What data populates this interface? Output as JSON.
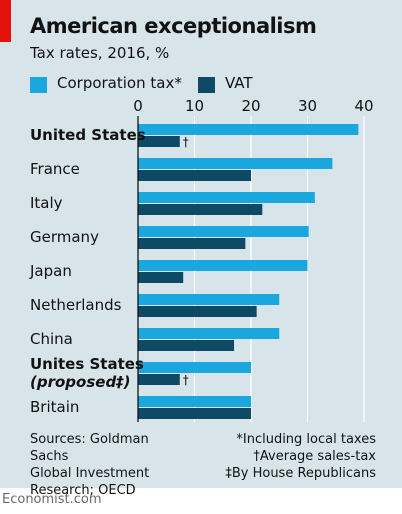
{
  "header": {
    "title": "American exceptionalism",
    "subtitle": "Tax rates, 2016, %"
  },
  "legend": {
    "corporation_label": "Corporation tax*",
    "vat_label": "VAT"
  },
  "colors": {
    "corporation": "#19a7de",
    "vat": "#0e4a63",
    "background": "#d7e4ea",
    "accent": "#e3120b"
  },
  "chart_data": {
    "type": "bar",
    "orientation": "horizontal",
    "title": "American exceptionalism",
    "subtitle": "Tax rates, 2016, %",
    "categories": [
      "United States",
      "France",
      "Italy",
      "Germany",
      "Japan",
      "Netherlands",
      "China",
      "Unites States (proposed‡)",
      "Britain"
    ],
    "category_lines": [
      [
        "United States"
      ],
      [
        "France"
      ],
      [
        "Italy"
      ],
      [
        "Germany"
      ],
      [
        "Japan"
      ],
      [
        "Netherlands"
      ],
      [
        "China"
      ],
      [
        "Unites States",
        "(proposed‡)"
      ],
      [
        "Britain"
      ]
    ],
    "bold_categories": [
      true,
      false,
      false,
      false,
      false,
      false,
      false,
      true,
      false
    ],
    "series": [
      {
        "name": "Corporation tax*",
        "values": [
          39,
          34.4,
          31.3,
          30.2,
          30,
          25,
          25,
          20,
          20
        ]
      },
      {
        "name": "VAT",
        "values": [
          7.4,
          20,
          22,
          19,
          8,
          21,
          17,
          7.4,
          20
        ]
      }
    ],
    "vat_markers": [
      "†",
      null,
      null,
      null,
      null,
      null,
      null,
      "†",
      null
    ],
    "xlim": [
      0,
      40
    ],
    "xticks": [
      0,
      10,
      20,
      30,
      40
    ],
    "grid": true,
    "legend_position": "top-left"
  },
  "sources": "Sources: Goldman Sachs\nGlobal Investment\nResearch; OECD",
  "notes": [
    "*Including local taxes",
    "†Average sales-tax",
    "‡By House Republicans"
  ],
  "footer": "Economist.com"
}
